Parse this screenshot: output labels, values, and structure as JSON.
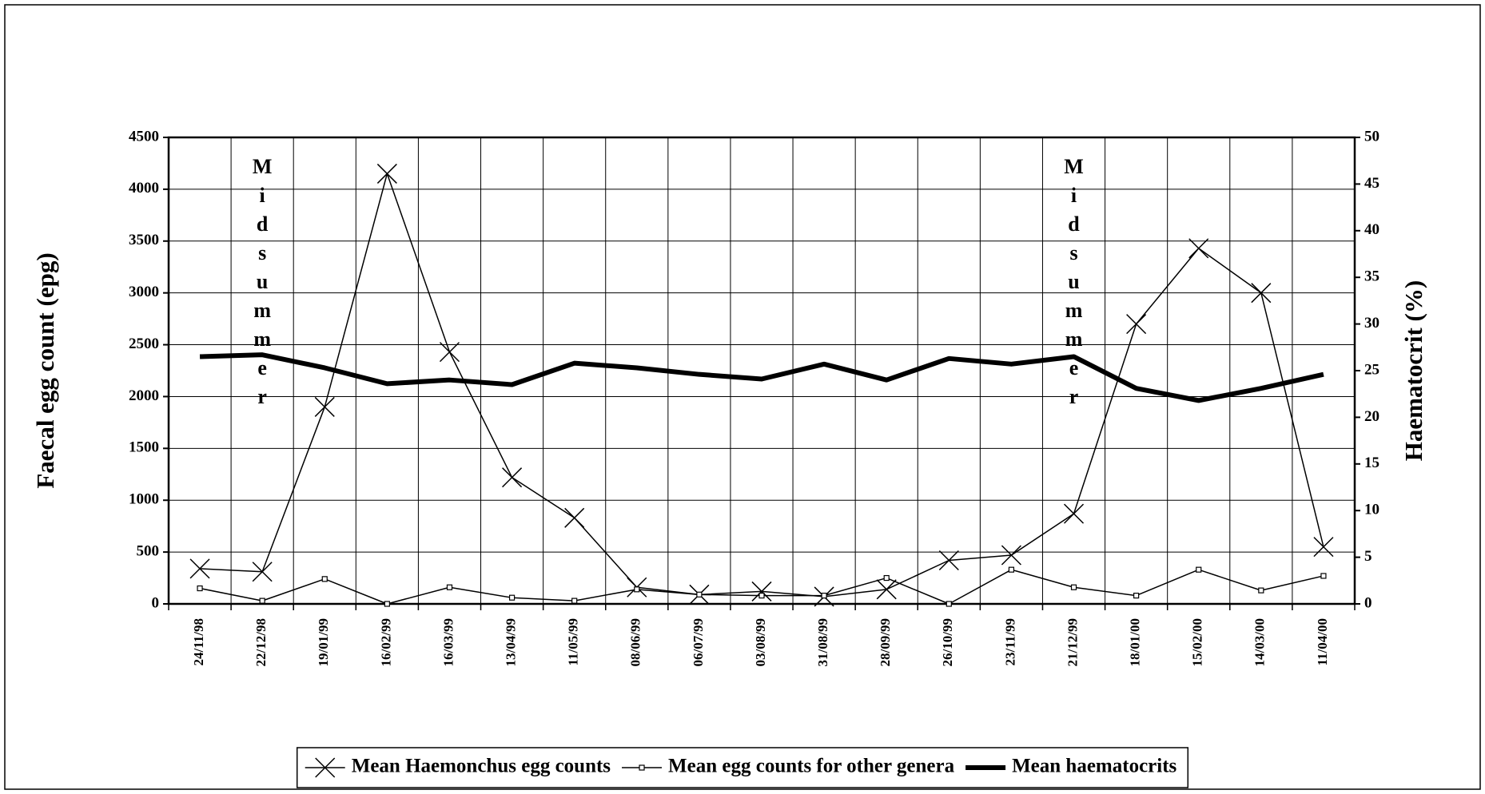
{
  "chart_data": {
    "type": "line",
    "y_label": "Faecal egg count (epg)",
    "y2_label": "Haematocrit (%)",
    "categories": [
      "24/11/98",
      "22/12/98",
      "19/01/99",
      "16/02/99",
      "16/03/99",
      "13/04/99",
      "11/05/99",
      "08/06/99",
      "06/07/99",
      "03/08/99",
      "31/08/99",
      "28/09/99",
      "26/10/99",
      "23/11/99",
      "21/12/99",
      "18/01/00",
      "15/02/00",
      "14/03/00",
      "11/04/00"
    ],
    "series": [
      {
        "name": "Mean Haemonchus egg counts",
        "color": "#000000",
        "marker": "x",
        "values": [
          340,
          310,
          1900,
          4150,
          2430,
          1220,
          830,
          160,
          90,
          120,
          70,
          140,
          420,
          470,
          870,
          2700,
          3430,
          3000,
          550
        ]
      },
      {
        "name": "Mean egg counts for other genera",
        "color": "#000000",
        "marker": "square",
        "values": [
          150,
          30,
          240,
          0,
          160,
          60,
          30,
          140,
          90,
          80,
          80,
          250,
          0,
          330,
          160,
          80,
          330,
          130,
          270
        ]
      },
      {
        "name": "Mean haematocrits",
        "color": "#000000",
        "marker": "none",
        "axis": "y2",
        "values": [
          26.5,
          26.7,
          25.3,
          23.6,
          24,
          23.5,
          25.8,
          25.3,
          24.6,
          24.1,
          25.7,
          24,
          26.3,
          25.7,
          26.5,
          23.1,
          21.8,
          23.1,
          24.6
        ]
      }
    ],
    "annotations": [
      {
        "text": "Midsummer",
        "x": "22/12/98"
      },
      {
        "text": "Midsummer",
        "x": "21/12/99"
      }
    ],
    "ylim": [
      0,
      4500
    ],
    "yticks": [
      0,
      500,
      1000,
      1500,
      2000,
      2500,
      3000,
      3500,
      4000,
      4500
    ],
    "y2lim": [
      0,
      50
    ],
    "y2ticks": [
      0,
      5,
      10,
      15,
      20,
      25,
      30,
      35,
      40,
      45,
      50
    ],
    "grid": true,
    "legend": "bottom"
  }
}
